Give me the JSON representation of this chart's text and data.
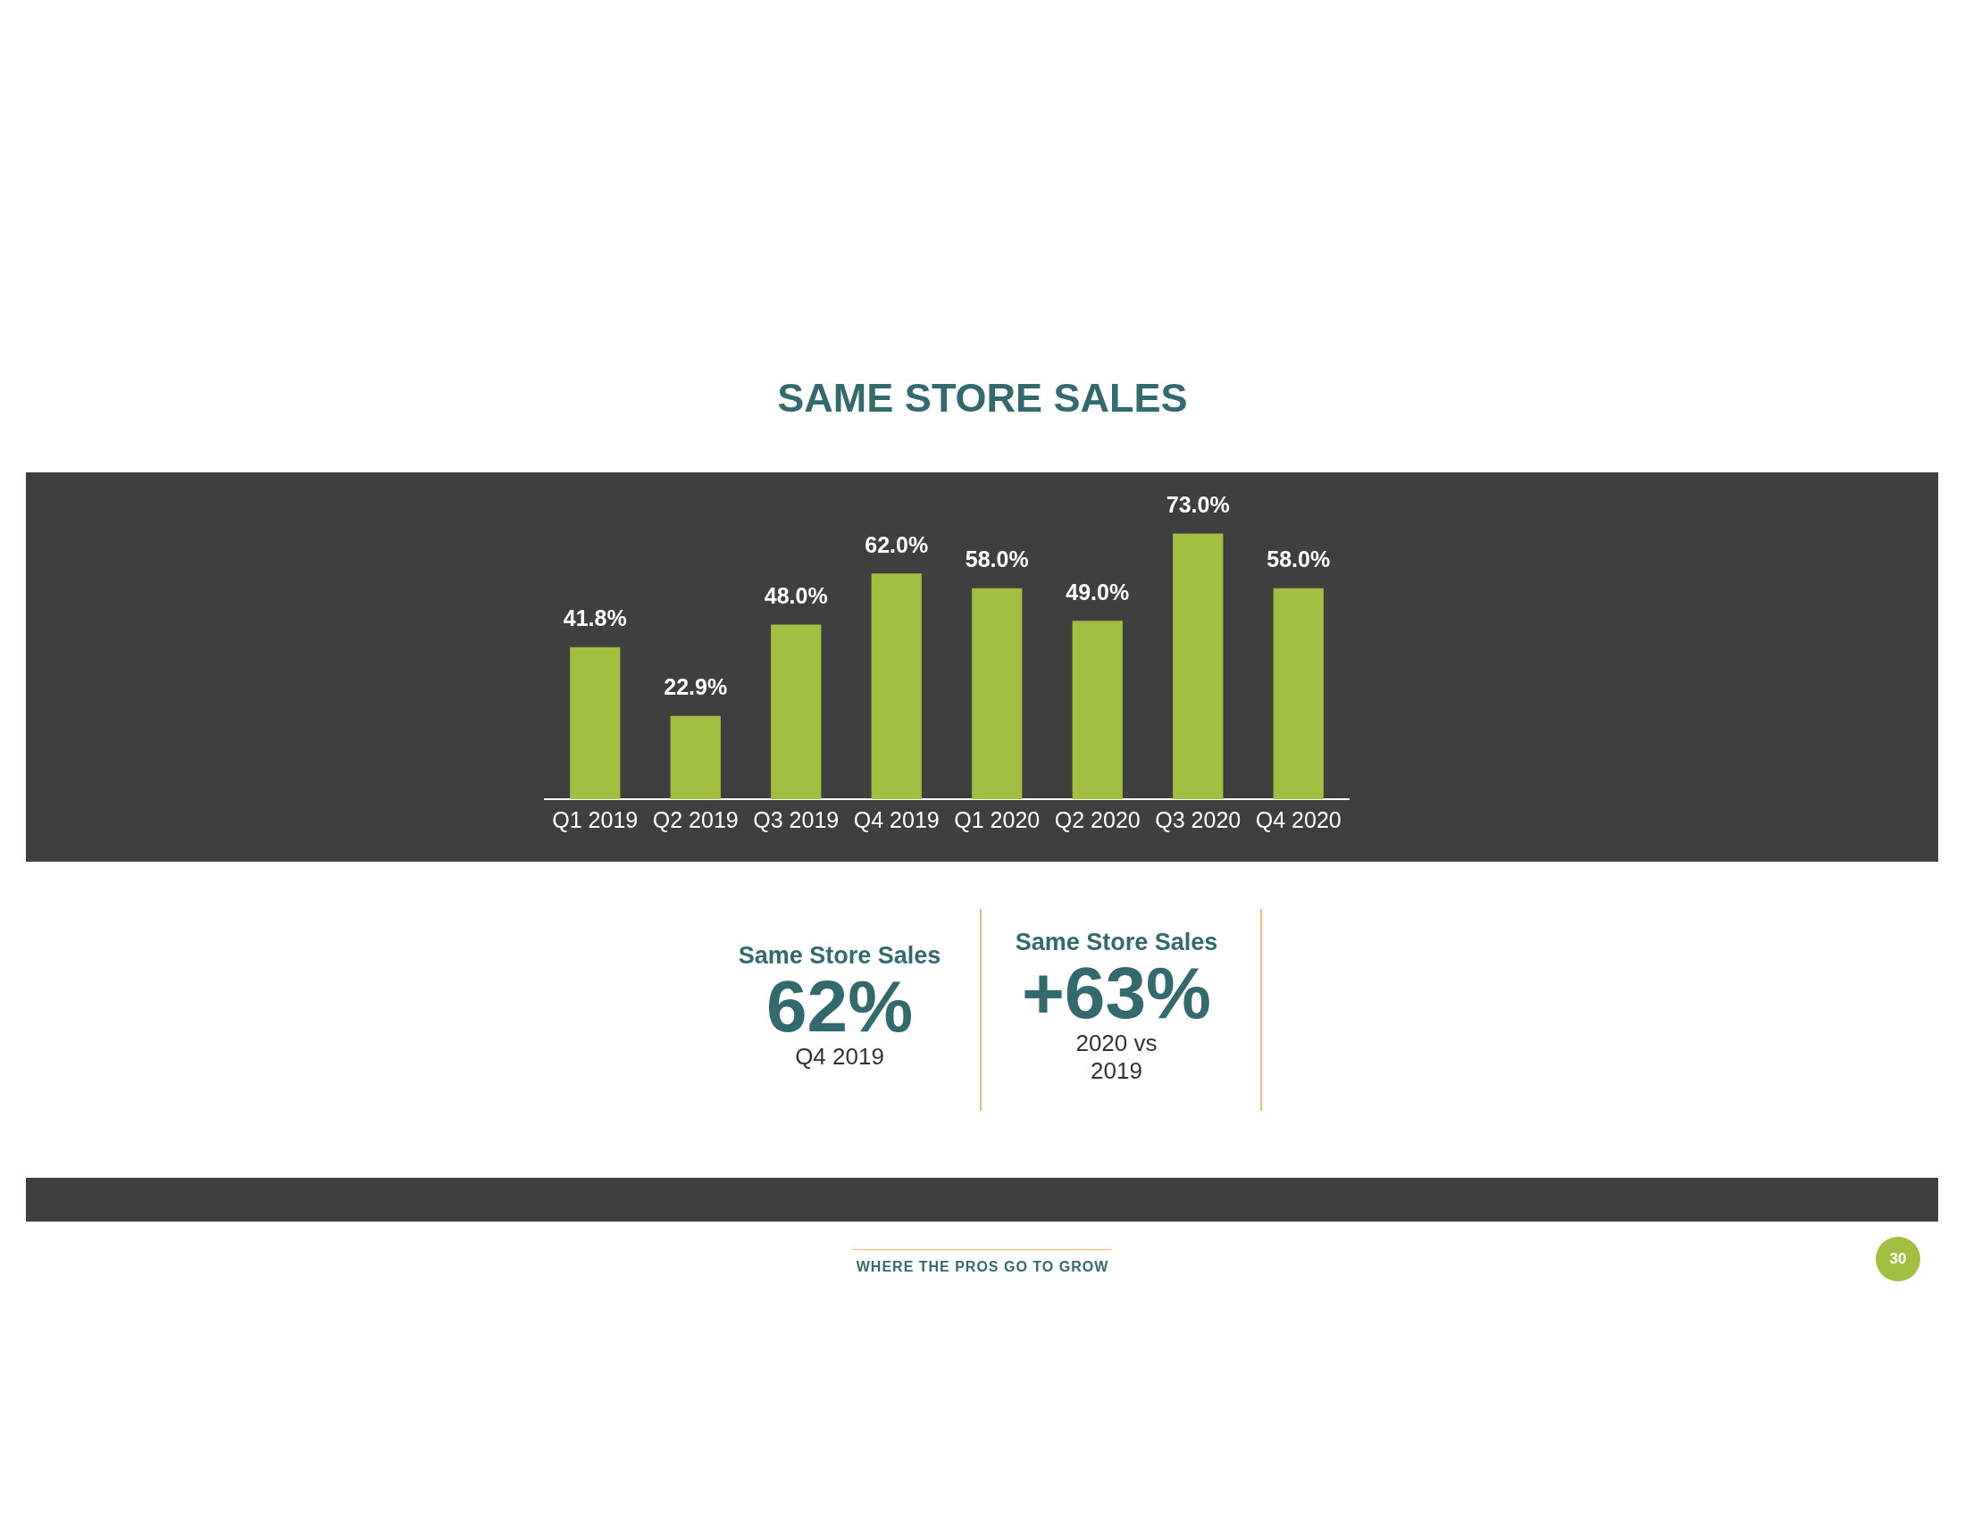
{
  "chart_data": [
    {
      "type": "bar",
      "title": "SAME STORE SALES",
      "categories": [
        "Q1 2019",
        "Q2 2019",
        "Q3 2019",
        "Q4 2019",
        "Q1 2020",
        "Q2 2020",
        "Q3 2020",
        "Q4 2020"
      ],
      "values": [
        41.8,
        22.9,
        48.0,
        62.0,
        58.0,
        49.0,
        73.0,
        58.0
      ],
      "value_labels": [
        "41.8%",
        "22.9%",
        "48.0%",
        "62.0%",
        "58.0%",
        "49.0%",
        "73.0%",
        "58.0%"
      ],
      "color": "#a3bf42",
      "grid": false,
      "legend": false,
      "tick_labels": "x",
      "annotations": [
        "WHERE THE PROS GO TO GROW",
        "30"
      ]
    },
    {
      "type": "other",
      "title": "Same Store Sales",
      "annotations": [
        "62%",
        "Q4 2019"
      ]
    },
    {
      "type": "other",
      "title": "Same Store Sales",
      "annotations": [
        "+63%",
        "2020 vs 2019"
      ]
    }
  ]
}
